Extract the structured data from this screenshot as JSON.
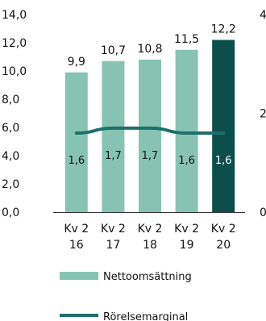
{
  "chart_data": {
    "type": "bar",
    "categories": [
      [
        "Kv 2",
        "16"
      ],
      [
        "Kv 2",
        "17"
      ],
      [
        "Kv 2",
        "18"
      ],
      [
        "Kv 2",
        "19"
      ],
      [
        "Kv 2",
        "20"
      ]
    ],
    "series": [
      {
        "name": "Nettoomsättning",
        "type": "bar",
        "axis": "left",
        "values": [
          9.9,
          10.7,
          10.8,
          11.5,
          12.2
        ],
        "labels": [
          "9,9",
          "10,7",
          "10,8",
          "11,5",
          "12,2"
        ]
      },
      {
        "name": "Rörelsemarginal",
        "type": "line",
        "axis": "right",
        "values": [
          1.6,
          1.7,
          1.7,
          1.6,
          1.6
        ],
        "labels": [
          "1,6",
          "1,7",
          "1,7",
          "1,6",
          "1,6"
        ]
      }
    ],
    "y_left": {
      "ylim": [
        0,
        14
      ],
      "ticks": [
        0,
        2,
        4,
        6,
        8,
        10,
        12,
        14
      ],
      "tick_labels": [
        "0,0",
        "2,0",
        "4,0",
        "6,0",
        "8,0",
        "10,0",
        "12,0",
        "14,0"
      ]
    },
    "y_right": {
      "ylim": [
        0,
        4
      ],
      "ticks": [
        0,
        2,
        4
      ],
      "tick_labels": [
        "0",
        "2",
        "4"
      ]
    },
    "highlight_index": 4,
    "grid": false,
    "legend_position": "bottom",
    "colors": {
      "bar": "#86c3b3",
      "bar_highlight": "#0b4e4a",
      "line": "#1f6f6a",
      "text": "#111111",
      "axis": "#333333",
      "label_on_highlight": "#ffffff"
    }
  }
}
